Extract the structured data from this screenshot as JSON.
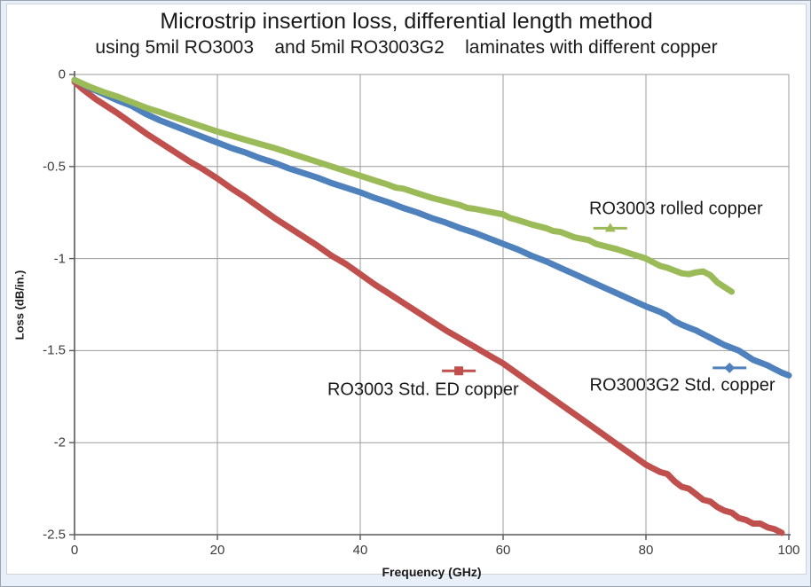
{
  "header": {
    "title": "Microstrip insertion loss, differential length method",
    "subtitle": "using 5mil RO3003    and 5mil RO3003G2    laminates with different copper"
  },
  "chart_data": {
    "type": "line",
    "title": "Microstrip insertion loss, differential length method",
    "subtitle": "using 5mil RO3003 and 5mil RO3003G2 laminates with different copper",
    "xlabel": "Frequency (GHz)",
    "ylabel": "Loss (dB/in.)",
    "xlim": [
      0,
      100
    ],
    "ylim": [
      -2.5,
      0
    ],
    "x_ticks": [
      0,
      20,
      40,
      60,
      80,
      100
    ],
    "y_ticks": [
      0,
      -0.5,
      -1,
      -1.5,
      -2,
      -2.5
    ],
    "grid": true,
    "legend_position": "inline-annotations",
    "colors": {
      "grid": "#9b9b9b",
      "axis": "#595959",
      "red": "#c0504d",
      "blue": "#4f81bd",
      "green": "#9bbb59"
    },
    "series": [
      {
        "name": "RO3003 Std. ED copper",
        "color": "#c0504d",
        "marker": "square",
        "points": [
          [
            0,
            -0.04
          ],
          [
            1,
            -0.075
          ],
          [
            2,
            -0.105
          ],
          [
            3,
            -0.135
          ],
          [
            4,
            -0.16
          ],
          [
            5,
            -0.185
          ],
          [
            6,
            -0.21
          ],
          [
            8,
            -0.265
          ],
          [
            10,
            -0.32
          ],
          [
            12,
            -0.37
          ],
          [
            14,
            -0.42
          ],
          [
            16,
            -0.47
          ],
          [
            18,
            -0.515
          ],
          [
            20,
            -0.565
          ],
          [
            22,
            -0.62
          ],
          [
            24,
            -0.67
          ],
          [
            26,
            -0.725
          ],
          [
            28,
            -0.78
          ],
          [
            30,
            -0.83
          ],
          [
            32,
            -0.88
          ],
          [
            34,
            -0.93
          ],
          [
            36,
            -0.985
          ],
          [
            38,
            -1.03
          ],
          [
            40,
            -1.085
          ],
          [
            42,
            -1.14
          ],
          [
            44,
            -1.19
          ],
          [
            46,
            -1.24
          ],
          [
            48,
            -1.29
          ],
          [
            50,
            -1.34
          ],
          [
            52,
            -1.39
          ],
          [
            54,
            -1.435
          ],
          [
            56,
            -1.48
          ],
          [
            58,
            -1.525
          ],
          [
            60,
            -1.57
          ],
          [
            62,
            -1.625
          ],
          [
            64,
            -1.68
          ],
          [
            66,
            -1.735
          ],
          [
            68,
            -1.79
          ],
          [
            70,
            -1.845
          ],
          [
            72,
            -1.9
          ],
          [
            74,
            -1.955
          ],
          [
            76,
            -2.01
          ],
          [
            78,
            -2.065
          ],
          [
            80,
            -2.12
          ],
          [
            81,
            -2.14
          ],
          [
            82,
            -2.16
          ],
          [
            83,
            -2.17
          ],
          [
            84,
            -2.21
          ],
          [
            85,
            -2.24
          ],
          [
            86,
            -2.25
          ],
          [
            87,
            -2.28
          ],
          [
            88,
            -2.31
          ],
          [
            89,
            -2.32
          ],
          [
            90,
            -2.35
          ],
          [
            91,
            -2.37
          ],
          [
            92,
            -2.38
          ],
          [
            93,
            -2.41
          ],
          [
            94,
            -2.42
          ],
          [
            95,
            -2.44
          ],
          [
            96,
            -2.44
          ],
          [
            97,
            -2.46
          ],
          [
            98,
            -2.47
          ],
          [
            99,
            -2.49
          ]
        ]
      },
      {
        "name": "RO3003G2 Std. copper",
        "color": "#4f81bd",
        "marker": "diamond",
        "points": [
          [
            0,
            -0.03
          ],
          [
            2,
            -0.07
          ],
          [
            4,
            -0.105
          ],
          [
            6,
            -0.14
          ],
          [
            8,
            -0.17
          ],
          [
            10,
            -0.215
          ],
          [
            12,
            -0.25
          ],
          [
            14,
            -0.28
          ],
          [
            16,
            -0.31
          ],
          [
            18,
            -0.34
          ],
          [
            20,
            -0.37
          ],
          [
            22,
            -0.4
          ],
          [
            24,
            -0.425
          ],
          [
            26,
            -0.455
          ],
          [
            28,
            -0.48
          ],
          [
            30,
            -0.51
          ],
          [
            32,
            -0.535
          ],
          [
            34,
            -0.56
          ],
          [
            36,
            -0.59
          ],
          [
            38,
            -0.615
          ],
          [
            40,
            -0.64
          ],
          [
            42,
            -0.67
          ],
          [
            44,
            -0.695
          ],
          [
            46,
            -0.725
          ],
          [
            48,
            -0.75
          ],
          [
            50,
            -0.78
          ],
          [
            52,
            -0.805
          ],
          [
            54,
            -0.835
          ],
          [
            56,
            -0.86
          ],
          [
            58,
            -0.89
          ],
          [
            60,
            -0.92
          ],
          [
            62,
            -0.95
          ],
          [
            64,
            -0.985
          ],
          [
            66,
            -1.015
          ],
          [
            68,
            -1.05
          ],
          [
            70,
            -1.085
          ],
          [
            72,
            -1.12
          ],
          [
            74,
            -1.155
          ],
          [
            76,
            -1.19
          ],
          [
            78,
            -1.225
          ],
          [
            80,
            -1.26
          ],
          [
            81,
            -1.275
          ],
          [
            82,
            -1.29
          ],
          [
            83,
            -1.31
          ],
          [
            84,
            -1.34
          ],
          [
            85,
            -1.36
          ],
          [
            86,
            -1.375
          ],
          [
            87,
            -1.39
          ],
          [
            88,
            -1.41
          ],
          [
            89,
            -1.43
          ],
          [
            90,
            -1.45
          ],
          [
            91,
            -1.47
          ],
          [
            92,
            -1.485
          ],
          [
            93,
            -1.5
          ],
          [
            94,
            -1.525
          ],
          [
            95,
            -1.55
          ],
          [
            96,
            -1.565
          ],
          [
            97,
            -1.58
          ],
          [
            98,
            -1.6
          ],
          [
            99,
            -1.62
          ],
          [
            100,
            -1.635
          ]
        ]
      },
      {
        "name": "RO3003 rolled copper",
        "color": "#9bbb59",
        "marker": "triangle",
        "points": [
          [
            0,
            -0.03
          ],
          [
            2,
            -0.065
          ],
          [
            4,
            -0.095
          ],
          [
            6,
            -0.12
          ],
          [
            8,
            -0.15
          ],
          [
            10,
            -0.18
          ],
          [
            12,
            -0.205
          ],
          [
            14,
            -0.232
          ],
          [
            16,
            -0.258
          ],
          [
            18,
            -0.284
          ],
          [
            20,
            -0.31
          ],
          [
            22,
            -0.333
          ],
          [
            24,
            -0.356
          ],
          [
            26,
            -0.378
          ],
          [
            28,
            -0.4
          ],
          [
            30,
            -0.425
          ],
          [
            32,
            -0.45
          ],
          [
            34,
            -0.475
          ],
          [
            36,
            -0.5
          ],
          [
            38,
            -0.525
          ],
          [
            40,
            -0.55
          ],
          [
            42,
            -0.575
          ],
          [
            44,
            -0.6
          ],
          [
            45,
            -0.615
          ],
          [
            46,
            -0.62
          ],
          [
            48,
            -0.645
          ],
          [
            50,
            -0.67
          ],
          [
            52,
            -0.69
          ],
          [
            54,
            -0.71
          ],
          [
            55,
            -0.725
          ],
          [
            56,
            -0.73
          ],
          [
            58,
            -0.745
          ],
          [
            60,
            -0.76
          ],
          [
            61,
            -0.78
          ],
          [
            62,
            -0.79
          ],
          [
            64,
            -0.815
          ],
          [
            66,
            -0.835
          ],
          [
            67,
            -0.85
          ],
          [
            68,
            -0.855
          ],
          [
            70,
            -0.885
          ],
          [
            72,
            -0.9
          ],
          [
            73,
            -0.92
          ],
          [
            74,
            -0.93
          ],
          [
            76,
            -0.95
          ],
          [
            78,
            -0.975
          ],
          [
            80,
            -1.0
          ],
          [
            81,
            -1.02
          ],
          [
            82,
            -1.04
          ],
          [
            83,
            -1.05
          ],
          [
            84,
            -1.065
          ],
          [
            85,
            -1.08
          ],
          [
            86,
            -1.085
          ],
          [
            87,
            -1.075
          ],
          [
            88,
            -1.07
          ],
          [
            89,
            -1.09
          ],
          [
            90,
            -1.13
          ],
          [
            91,
            -1.155
          ],
          [
            92,
            -1.18
          ]
        ]
      }
    ],
    "annotations": [
      {
        "text": "RO3003 rolled copper",
        "color": "#9bbb59",
        "marker": "triangle",
        "label_x": 84.2,
        "label_y": -0.73,
        "marker_x": 75.0,
        "marker_y": -0.835
      },
      {
        "text": "RO3003 Std. ED copper",
        "color": "#c0504d",
        "marker": "square",
        "label_x": 48.8,
        "label_y": -1.715,
        "marker_x": 53.8,
        "marker_y": -1.61
      },
      {
        "text": "RO3003G2 Std. copper",
        "color": "#4f81bd",
        "marker": "diamond",
        "label_x": 85.1,
        "label_y": -1.69,
        "marker_x": 91.7,
        "marker_y": -1.594
      }
    ]
  }
}
